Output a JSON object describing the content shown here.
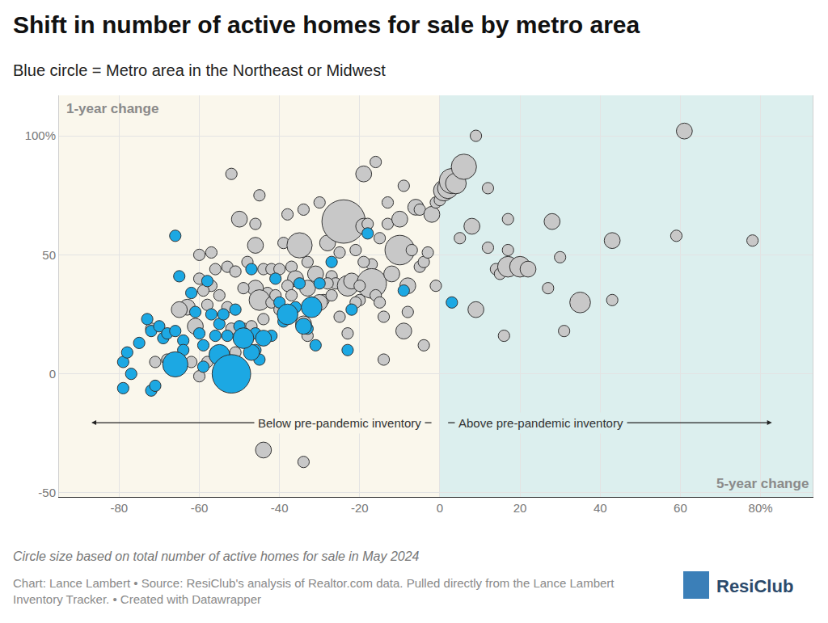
{
  "chart_data": {
    "type": "scatter",
    "title": "Shift in number of active homes for sale by metro area",
    "subtitle": "Blue circle = Metro area in the Northeast or Midwest",
    "x_label": "5-year change",
    "y_label": "1-year change",
    "annotations": [
      "Below pre-pandemic inventory",
      "Above pre-pandemic inventory"
    ],
    "caption": "Circle size based on total number of active homes for sale in May 2024",
    "source": "Chart: Lance Lambert • Source: ResiClub's analysis of Realtor.com data. Pulled directly from the Lance Lambert Inventory Tracker. • Created with Datawrapper",
    "logo": "ResiClub",
    "marker": "circle",
    "grid": true,
    "xlim": [
      -95,
      93
    ],
    "ylim": [
      -51.7,
      117
    ],
    "xticks": [
      -80,
      -60,
      -40,
      -20,
      0,
      20,
      40,
      60,
      {
        "value": 80,
        "label": "80%"
      }
    ],
    "yticks": [
      -50,
      0,
      50,
      {
        "value": 100,
        "label": "100%"
      }
    ],
    "series": [
      {
        "color": "#c8c8c8",
        "x": [
          -52,
          -45,
          -46,
          -50,
          -60,
          -57,
          -53,
          -51,
          -46,
          -44,
          -43,
          -46,
          -45,
          -42,
          -42,
          -40,
          -39,
          -38,
          -37,
          -36,
          -36,
          -35,
          -34,
          -33,
          -33,
          -34,
          -33,
          -31,
          -30,
          -29,
          -28,
          -27,
          -27,
          -26,
          -25,
          -25,
          -24,
          -23,
          -22,
          -21,
          -20,
          -19,
          -19,
          -18,
          -17,
          -17,
          -16,
          -16,
          -15,
          -15,
          -14,
          -14,
          -13,
          -13,
          -12,
          -10,
          -10,
          -9,
          -9,
          -8,
          -8,
          -7,
          -6,
          -5,
          -5,
          -4,
          -4,
          -3,
          -2,
          -1,
          -1,
          0,
          1,
          2,
          3,
          4,
          6,
          5,
          8,
          9,
          9,
          12,
          12,
          14,
          15,
          16,
          17,
          17,
          17,
          20,
          22,
          27,
          28,
          30,
          31,
          35,
          43,
          43,
          59,
          61,
          78,
          -44,
          -34,
          -72,
          -71,
          -68,
          -67,
          -63,
          -61,
          -60,
          -60,
          -58,
          -58,
          -57,
          -55,
          -53,
          -52,
          -51,
          -49,
          -49,
          -48,
          -47,
          -44,
          -41,
          -40,
          -38,
          -37,
          -30,
          -28,
          -23,
          -21,
          -20,
          -19,
          -55,
          -62,
          -65,
          -56,
          -59
        ],
        "values": [
          84,
          75,
          63,
          65,
          50,
          51,
          45,
          43,
          54,
          44,
          34,
          36,
          31,
          30,
          44,
          44,
          55,
          67,
          45,
          40,
          55,
          54,
          69,
          47,
          36,
          21,
          16,
          42,
          72,
          31,
          55,
          33,
          41,
          38,
          51,
          24,
          64,
          37,
          39,
          52,
          31,
          84,
          62,
          63,
          46,
          38,
          89,
          33,
          30,
          57,
          24,
          6,
          72,
          63,
          42,
          52,
          65,
          79,
          18,
          26,
          37,
          52,
          70,
          69,
          45,
          47,
          12,
          51,
          67,
          37,
          72,
          73,
          77,
          78,
          81,
          80,
          87,
          57,
          62,
          100,
          27,
          78,
          53,
          44,
          42,
          16,
          65,
          52,
          45,
          45,
          44,
          36,
          64,
          49,
          18,
          30,
          56,
          31,
          58,
          102,
          56,
          -32,
          -37,
          19,
          5,
          6,
          3,
          28,
          20,
          -1,
          40,
          29,
          5,
          37,
          33,
          28,
          19,
          9,
          19,
          36,
          47,
          20,
          23,
          33,
          27,
          37,
          33,
          30,
          38,
          17,
          30,
          37,
          47,
          9,
          5,
          27,
          44,
          35
        ],
        "sizes": [
          1500,
          1500,
          1500,
          2900,
          1500,
          1500,
          1500,
          1500,
          2900,
          1500,
          1500,
          2900,
          4900,
          1500,
          1500,
          1500,
          1500,
          1500,
          1500,
          2900,
          1500,
          7300,
          1500,
          1500,
          2900,
          2900,
          1500,
          2900,
          1500,
          1500,
          2900,
          1500,
          1500,
          1500,
          1500,
          1500,
          21600,
          4900,
          2900,
          1500,
          1500,
          2900,
          2900,
          1500,
          1500,
          10000,
          1500,
          1500,
          1500,
          1500,
          1500,
          1500,
          1500,
          1500,
          2900,
          10000,
          2900,
          1500,
          2900,
          1500,
          2900,
          1500,
          2900,
          1500,
          1500,
          1500,
          1500,
          1500,
          2900,
          1500,
          1500,
          1500,
          4900,
          4900,
          7300,
          4900,
          7300,
          1500,
          2900,
          1500,
          2900,
          1500,
          1500,
          1500,
          1500,
          1500,
          1500,
          1500,
          4900,
          4900,
          2900,
          1500,
          2900,
          1500,
          1500,
          4900,
          2900,
          1500,
          1500,
          2900,
          1500,
          2900,
          1500,
          1500,
          1500,
          1500,
          1500,
          2900,
          2900,
          1500,
          1500,
          1500,
          1500,
          1500,
          1500,
          1500,
          1500,
          1500,
          1500,
          1500,
          1500,
          1500,
          1500,
          1500,
          1500,
          1500,
          1500,
          2900,
          1500,
          1500,
          1500,
          1500,
          1500,
          1500,
          1500,
          2900,
          1500,
          1500
        ]
      },
      {
        "color": "#1ca8e3",
        "x": [
          -79,
          -79,
          -78,
          -77,
          -75,
          -72,
          -71,
          -73,
          -72,
          -70,
          -69,
          -68,
          -66,
          -66,
          -67,
          -65,
          -65,
          -64,
          -64,
          -62,
          -61,
          -60,
          -59,
          -59,
          -58,
          -57,
          -56,
          -56,
          -55,
          -54,
          -54,
          -53,
          -51,
          -50,
          -50,
          -47,
          -46,
          -46,
          -45,
          -42,
          -41,
          -40,
          -39,
          -38,
          -36,
          -35,
          -33,
          -32,
          -31,
          -30,
          -27,
          -23,
          -22,
          -18,
          -9,
          3,
          -66,
          -55,
          -52,
          -47,
          -38,
          -34,
          -32,
          -44,
          -49
        ],
        "values": [
          -6,
          5,
          9,
          0,
          13,
          -7,
          -5,
          23,
          18,
          20,
          15,
          17,
          18,
          58,
          5,
          3,
          41,
          14,
          10,
          34,
          26,
          17,
          12,
          3,
          39,
          25,
          16,
          9,
          21,
          25,
          3,
          16,
          27,
          15,
          20,
          44,
          17,
          10,
          6,
          16,
          40,
          30,
          22,
          26,
          28,
          38,
          19,
          30,
          12,
          38,
          47,
          10,
          27,
          59,
          35,
          30,
          4,
          8,
          0,
          9,
          25,
          20,
          28,
          15,
          15
        ],
        "sizes": [
          1500,
          1500,
          1500,
          1500,
          1500,
          1500,
          1500,
          1500,
          1500,
          1500,
          1500,
          1500,
          1500,
          1500,
          1500,
          1500,
          1500,
          1500,
          1500,
          1500,
          1500,
          1500,
          1500,
          1500,
          1500,
          1500,
          1500,
          1500,
          1500,
          1500,
          1500,
          1500,
          1500,
          1500,
          1500,
          1500,
          1500,
          1500,
          1500,
          1500,
          1500,
          1500,
          1500,
          1500,
          1500,
          1500,
          1500,
          1500,
          1500,
          1500,
          1500,
          1500,
          1500,
          1500,
          1500,
          1500,
          7300,
          4900,
          17000,
          2900,
          4900,
          2900,
          4900,
          2900,
          4900
        ]
      }
    ]
  }
}
